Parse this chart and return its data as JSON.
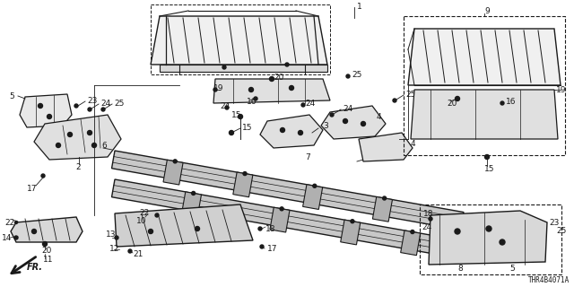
{
  "bg_color": "#ffffff",
  "line_color": "#1a1a1a",
  "diagram_code": "THR4B4071A",
  "figsize": [
    6.4,
    3.2
  ],
  "dpi": 100
}
